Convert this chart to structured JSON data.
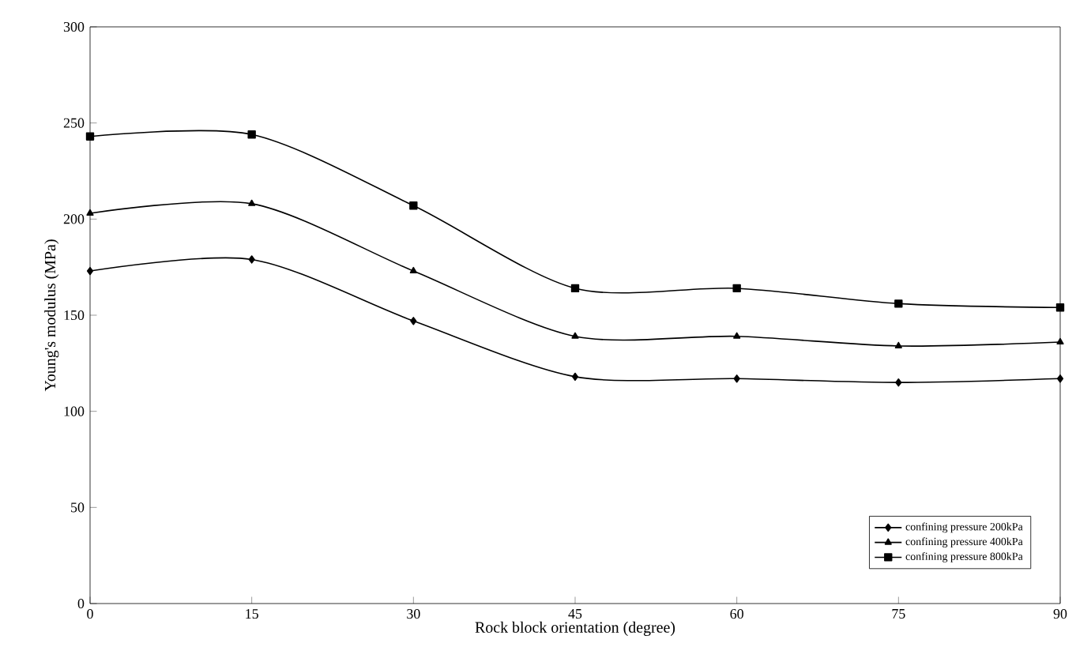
{
  "chart_data": {
    "type": "line",
    "xlabel": "Rock block orientation (degree)",
    "ylabel": "Young's modulus (MPa)",
    "x": [
      0,
      15,
      30,
      45,
      60,
      75,
      90
    ],
    "series": [
      {
        "name": "confining pressure 200kPa",
        "color": "#000000",
        "marker": "diamond",
        "values": [
          173,
          179,
          147,
          118,
          117,
          115,
          117
        ]
      },
      {
        "name": "confining pressure 400kPa",
        "color": "#000000",
        "marker": "triangle",
        "values": [
          203,
          208,
          173,
          139,
          139,
          134,
          136
        ]
      },
      {
        "name": "confining pressure 800kPa",
        "color": "#000000",
        "marker": "square",
        "values": [
          243,
          244,
          207,
          164,
          164,
          156,
          154
        ]
      }
    ],
    "xlim": [
      0,
      90
    ],
    "ylim": [
      0,
      300
    ],
    "xticks": [
      0,
      15,
      30,
      45,
      60,
      75,
      90
    ],
    "yticks": [
      0,
      50,
      100,
      150,
      200,
      250,
      300
    ],
    "grid": false,
    "legend": "bottom right",
    "line_style": "solid"
  }
}
